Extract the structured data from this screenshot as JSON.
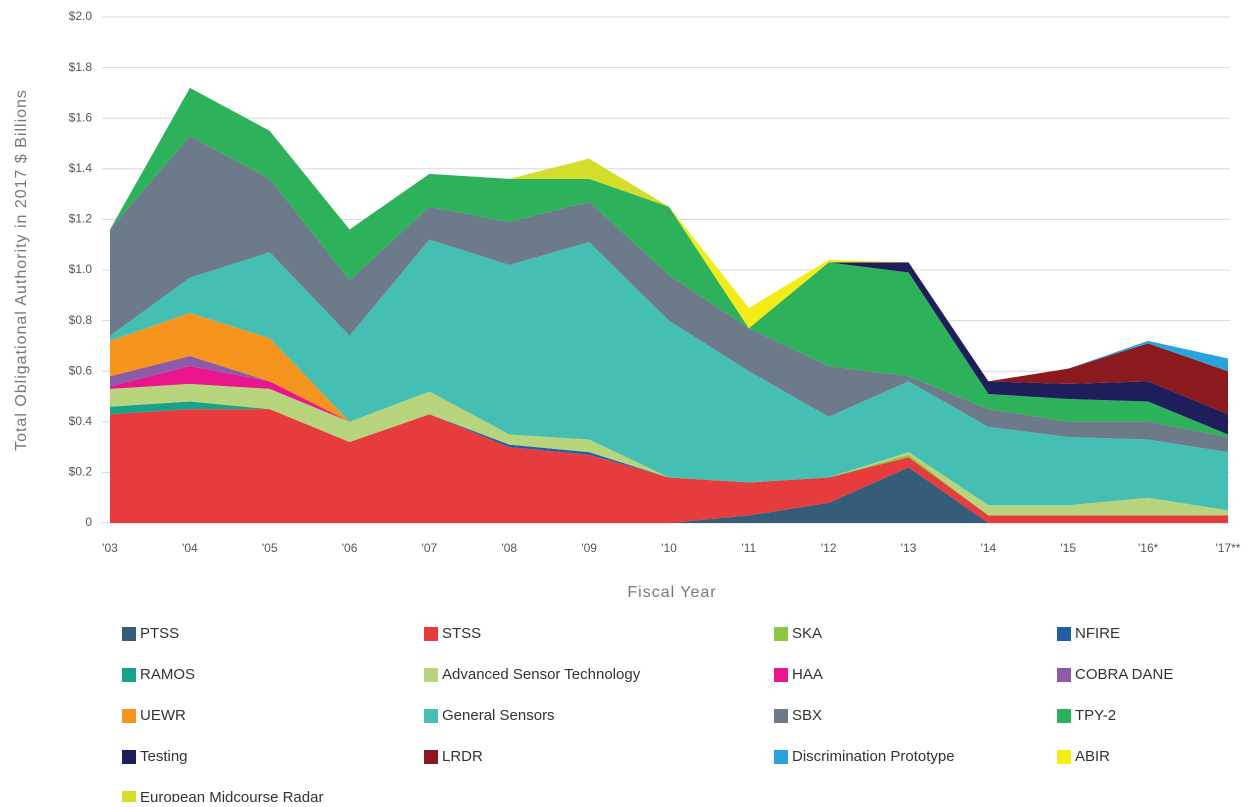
{
  "chart_data": {
    "type": "stacked_area",
    "y_label": "Total Obligational Authority in 2017 $ Billions",
    "x_label": "Fiscal Year",
    "categories": [
      "'03",
      "'04",
      "'05",
      "'06",
      "'07",
      "'08",
      "'09",
      "'10",
      "'11",
      "'12",
      "'13",
      "'14",
      "'15",
      "'16*",
      "'17**"
    ],
    "ylim": [
      0,
      2.0
    ],
    "yticks": [
      {
        "value": 0,
        "label": "0"
      },
      {
        "value": 0.2,
        "label": "$0.2"
      },
      {
        "value": 0.4,
        "label": "$0.4"
      },
      {
        "value": 0.6,
        "label": "$0.6"
      },
      {
        "value": 0.8,
        "label": "$0.8"
      },
      {
        "value": 1.0,
        "label": "$1.0"
      },
      {
        "value": 1.2,
        "label": "$1.2"
      },
      {
        "value": 1.4,
        "label": "$1.4"
      },
      {
        "value": 1.6,
        "label": "$1.6"
      },
      {
        "value": 1.8,
        "label": "$1.8"
      },
      {
        "value": 2.0,
        "label": "$2.0"
      }
    ],
    "grid": true,
    "series": [
      {
        "name": "PTSS",
        "color": "#355c78",
        "values": [
          0,
          0,
          0,
          0,
          0,
          0,
          0,
          0,
          0.03,
          0.08,
          0.22,
          0,
          0,
          0,
          0
        ]
      },
      {
        "name": "STSS",
        "color": "#e63c3e",
        "values": [
          0.43,
          0.45,
          0.45,
          0.32,
          0.43,
          0.3,
          0.27,
          0.18,
          0.13,
          0.1,
          0.04,
          0.03,
          0.03,
          0.03,
          0.03
        ]
      },
      {
        "name": "SKA",
        "color": "#8dc63f",
        "values": [
          0,
          0,
          0,
          0,
          0,
          0,
          0,
          0,
          0,
          0,
          0.01,
          0,
          0,
          0,
          0
        ]
      },
      {
        "name": "NFIRE",
        "color": "#1f5fa8",
        "values": [
          0,
          0,
          0,
          0,
          0,
          0.01,
          0.01,
          0,
          0,
          0,
          0,
          0,
          0,
          0,
          0
        ]
      },
      {
        "name": "RAMOS",
        "color": "#16a38a",
        "values": [
          0.03,
          0.03,
          0,
          0,
          0,
          0,
          0,
          0,
          0,
          0,
          0,
          0,
          0,
          0,
          0
        ]
      },
      {
        "name": "Advanced Sensor Technology",
        "color": "#b8d47c",
        "values": [
          0.07,
          0.07,
          0.08,
          0.08,
          0.09,
          0.04,
          0.05,
          0,
          0,
          0,
          0.01,
          0.04,
          0.04,
          0.07,
          0.02
        ]
      },
      {
        "name": "HAA",
        "color": "#e8158c",
        "values": [
          0.01,
          0.07,
          0.03,
          0,
          0,
          0,
          0,
          0,
          0,
          0,
          0,
          0,
          0,
          0,
          0
        ]
      },
      {
        "name": "COBRA DANE",
        "color": "#8e5aa8",
        "values": [
          0.04,
          0.04,
          0,
          0,
          0,
          0,
          0,
          0,
          0,
          0,
          0,
          0,
          0,
          0,
          0
        ]
      },
      {
        "name": "UEWR",
        "color": "#f7941d",
        "values": [
          0.14,
          0.17,
          0.17,
          0,
          0,
          0,
          0,
          0,
          0,
          0,
          0,
          0,
          0,
          0,
          0
        ]
      },
      {
        "name": "General Sensors",
        "color": "#45bfb3",
        "values": [
          0.02,
          0.14,
          0.34,
          0.34,
          0.6,
          0.67,
          0.78,
          0.62,
          0.44,
          0.24,
          0.28,
          0.31,
          0.27,
          0.23,
          0.23
        ]
      },
      {
        "name": "SBX",
        "color": "#6c7a89",
        "values": [
          0.42,
          0.56,
          0.29,
          0.22,
          0.13,
          0.17,
          0.16,
          0.18,
          0.17,
          0.2,
          0.02,
          0.07,
          0.06,
          0.07,
          0.06
        ]
      },
      {
        "name": "TPY-2",
        "color": "#2db25b",
        "values": [
          0,
          0.19,
          0.19,
          0.2,
          0.13,
          0.17,
          0.09,
          0.27,
          0,
          0.41,
          0.41,
          0.06,
          0.09,
          0.08,
          0.01
        ]
      },
      {
        "name": "Testing",
        "color": "#1e1e5a",
        "values": [
          0,
          0,
          0,
          0,
          0,
          0,
          0,
          0,
          0,
          0,
          0.04,
          0.05,
          0.06,
          0.08,
          0.08
        ]
      },
      {
        "name": "LRDR",
        "color": "#8b1a1e",
        "values": [
          0,
          0,
          0,
          0,
          0,
          0,
          0,
          0,
          0,
          0,
          0,
          0,
          0.06,
          0.15,
          0.17
        ]
      },
      {
        "name": "Discrimination Prototype",
        "color": "#29a3dc",
        "values": [
          0,
          0,
          0,
          0,
          0,
          0,
          0,
          0,
          0,
          0,
          0,
          0,
          0,
          0.01,
          0.05
        ]
      },
      {
        "name": "ABIR",
        "color": "#f4ec19",
        "values": [
          0,
          0,
          0,
          0,
          0,
          0,
          0,
          0,
          0.08,
          0.01,
          0,
          0,
          0,
          0,
          0
        ]
      },
      {
        "name": "European Midcourse Radar",
        "color": "#d4dd2a",
        "values": [
          0,
          0,
          0,
          0,
          0,
          0,
          0.08,
          0,
          0,
          0,
          0,
          0,
          0,
          0,
          0
        ]
      }
    ]
  }
}
